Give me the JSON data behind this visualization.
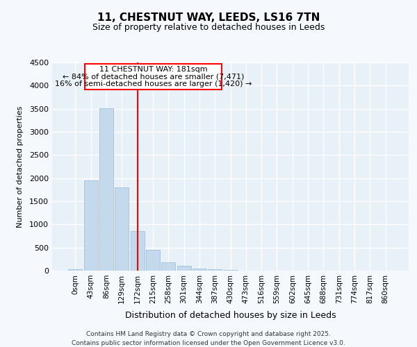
{
  "title": "11, CHESTNUT WAY, LEEDS, LS16 7TN",
  "subtitle": "Size of property relative to detached houses in Leeds",
  "xlabel": "Distribution of detached houses by size in Leeds",
  "ylabel": "Number of detached properties",
  "categories": [
    "0sqm",
    "43sqm",
    "86sqm",
    "129sqm",
    "172sqm",
    "215sqm",
    "258sqm",
    "301sqm",
    "344sqm",
    "387sqm",
    "430sqm",
    "473sqm",
    "516sqm",
    "559sqm",
    "602sqm",
    "645sqm",
    "688sqm",
    "731sqm",
    "774sqm",
    "817sqm",
    "860sqm"
  ],
  "values": [
    30,
    1950,
    3510,
    1800,
    850,
    450,
    175,
    100,
    50,
    25,
    10,
    0,
    0,
    0,
    0,
    0,
    0,
    0,
    0,
    0,
    0
  ],
  "bar_color": "#c5d9ed",
  "bar_edge_color": "#9ab8d8",
  "property_line_index": 4,
  "property_line_label": "11 CHESTNUT WAY: 181sqm",
  "ann_line1": "← 84% of detached houses are smaller (7,471)",
  "ann_line2": "16% of semi-detached houses are larger (1,420) →",
  "ylim": [
    0,
    4500
  ],
  "yticks": [
    0,
    500,
    1000,
    1500,
    2000,
    2500,
    3000,
    3500,
    4000,
    4500
  ],
  "footer_line1": "Contains HM Land Registry data © Crown copyright and database right 2025.",
  "footer_line2": "Contains public sector information licensed under the Open Government Licence v3.0.",
  "background_color": "#f5f8fc",
  "plot_bg_color": "#e8f0f8",
  "grid_color": "#ffffff",
  "title_fontsize": 11,
  "subtitle_fontsize": 9
}
